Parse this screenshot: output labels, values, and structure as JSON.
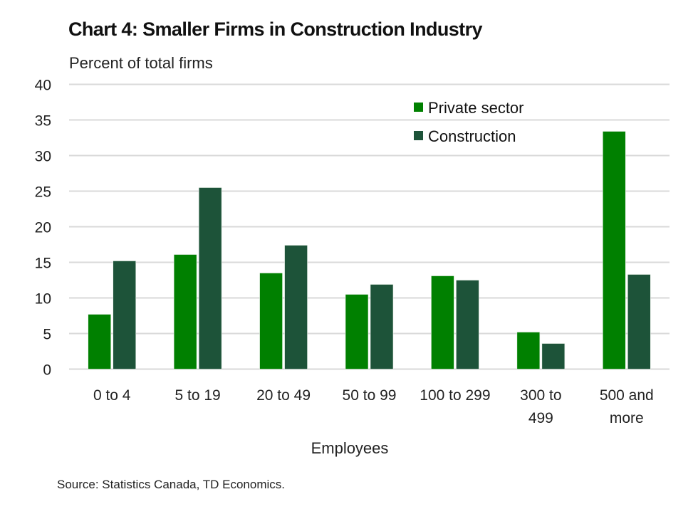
{
  "chart_data": {
    "type": "bar",
    "title": "Chart 4: Smaller Firms in Construction Industry",
    "ylabel": "Percent of total firms",
    "xlabel": "Employees",
    "source": "Source: Statistics Canada, TD Economics.",
    "ylim": [
      0,
      40
    ],
    "yticks": [
      0,
      5,
      10,
      15,
      20,
      25,
      30,
      35,
      40
    ],
    "grid": true,
    "legend_position": "top-right",
    "categories": [
      [
        "0 to 4"
      ],
      [
        "5 to 19"
      ],
      [
        "20 to 49"
      ],
      [
        "50 to 99"
      ],
      [
        "100 to 299"
      ],
      [
        "300 to",
        "499"
      ],
      [
        "500 and",
        "more"
      ]
    ],
    "series": [
      {
        "name": "Private sector",
        "color": "#008000",
        "values": [
          7.7,
          16.1,
          13.5,
          10.5,
          13.1,
          5.2,
          33.4
        ]
      },
      {
        "name": "Construction",
        "color": "#1d5339",
        "values": [
          15.2,
          25.5,
          17.4,
          11.9,
          12.5,
          3.6,
          13.3
        ]
      }
    ]
  }
}
